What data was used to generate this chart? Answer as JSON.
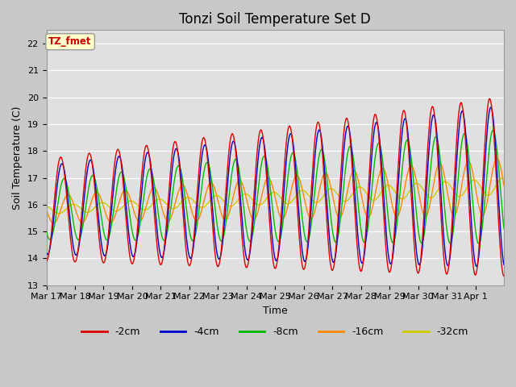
{
  "title": "Tonzi Soil Temperature Set D",
  "ylabel": "Soil Temperature (C)",
  "xlabel": "Time",
  "annotation": "TZ_fmet",
  "ylim": [
    13.0,
    22.5
  ],
  "yticks": [
    13.0,
    14.0,
    15.0,
    16.0,
    17.0,
    18.0,
    19.0,
    20.0,
    21.0,
    22.0
  ],
  "xtick_labels": [
    "Mar 17",
    "Mar 18",
    "Mar 19",
    "Mar 20",
    "Mar 21",
    "Mar 22",
    "Mar 23",
    "Mar 24",
    "Mar 25",
    "Mar 26",
    "Mar 27",
    "Mar 28",
    "Mar 29",
    "Mar 30",
    "Mar 31",
    "Apr 1"
  ],
  "colors": {
    "-2cm": "#dd0000",
    "-4cm": "#0000cc",
    "-8cm": "#00bb00",
    "-16cm": "#ff8800",
    "-32cm": "#cccc00"
  },
  "legend_labels": [
    "-2cm",
    "-4cm",
    "-8cm",
    "-16cm",
    "-32cm"
  ],
  "fig_bg": "#c8c8c8",
  "plot_bg": "#e0e0e0",
  "annotation_bg": "#ffffcc",
  "annotation_color": "#cc0000"
}
